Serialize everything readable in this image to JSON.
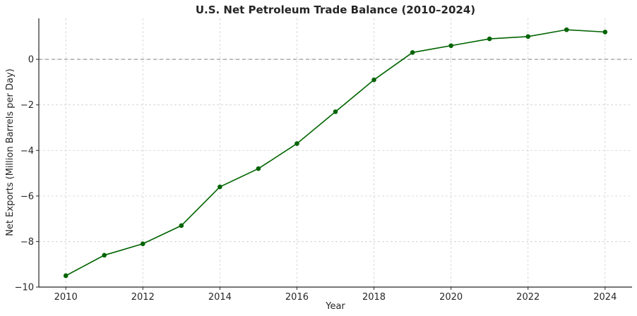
{
  "chart_data": {
    "type": "line",
    "title": "U.S. Net Petroleum Trade Balance (2010–2024)",
    "xlabel": "Year",
    "ylabel": "Net Exports (Million Barrels per Day)",
    "x": [
      2010,
      2011,
      2012,
      2013,
      2014,
      2015,
      2016,
      2017,
      2018,
      2019,
      2020,
      2021,
      2022,
      2023,
      2024
    ],
    "series": [
      {
        "values": [
          -9.5,
          -8.6,
          -8.1,
          -7.3,
          -5.6,
          -4.8,
          -3.7,
          -2.3,
          -0.9,
          0.3,
          0.6,
          0.9,
          1.0,
          1.3,
          1.2
        ],
        "color": "#006400"
      }
    ],
    "xlim": [
      2009.3,
      2024.7
    ],
    "ylim": [
      -10,
      1.8
    ],
    "xticks": [
      2010,
      2012,
      2014,
      2016,
      2018,
      2020,
      2022,
      2024
    ],
    "yticks": [
      -10,
      -8,
      -6,
      -4,
      -2,
      0
    ],
    "ytick_labels": [
      "−10",
      "−8",
      "−6",
      "−4",
      "−2",
      "0"
    ],
    "grid": true,
    "reference_line": {
      "y": 0,
      "color": "#808080",
      "style": "dashed"
    }
  }
}
